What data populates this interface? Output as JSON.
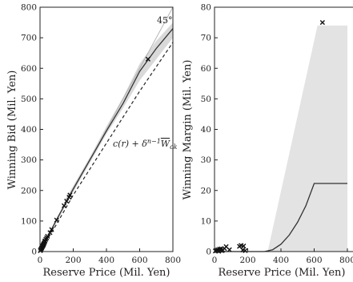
{
  "chart_data": [
    {
      "type": "line",
      "xlabel": "Reserve Price (Mil. Yen)",
      "ylabel": "Winning Bid (Mil. Yen)",
      "xlim": [
        0,
        800
      ],
      "ylim": [
        0,
        800
      ],
      "xticks": [
        "0",
        "200",
        "400",
        "600",
        "800"
      ],
      "yticks": [
        "0",
        "100",
        "200",
        "300",
        "400",
        "500",
        "600",
        "700",
        "800"
      ],
      "grid": false,
      "annotations": [
        "45°",
        "c(r) + δⁿ⁻¹W̄ck"
      ],
      "series": [
        {
          "style": "diagonal-45",
          "x": [
            0,
            800
          ],
          "y": [
            0,
            800
          ]
        },
        {
          "style": "solid",
          "x": [
            0,
            100,
            200,
            300,
            400,
            500,
            600,
            700,
            800
          ],
          "y": [
            0,
            105,
            205,
            300,
            395,
            485,
            590,
            665,
            730
          ]
        },
        {
          "style": "dashed",
          "x": [
            0,
            100,
            200,
            300,
            400,
            500,
            600,
            700,
            800
          ],
          "y": [
            0,
            90,
            185,
            270,
            355,
            440,
            525,
            605,
            685
          ]
        },
        {
          "style": "band-upper",
          "x": [
            150,
            200,
            300,
            400,
            500,
            600,
            700,
            800
          ],
          "y": [
            170,
            215,
            310,
            410,
            505,
            615,
            690,
            750
          ]
        },
        {
          "style": "band-lower",
          "x": [
            150,
            200,
            300,
            400,
            500,
            600,
            700,
            800
          ],
          "y": [
            150,
            195,
            290,
            385,
            470,
            560,
            630,
            700
          ]
        },
        {
          "style": "markers-x",
          "x": [
            2,
            4,
            6,
            8,
            10,
            12,
            15,
            18,
            20,
            22,
            25,
            28,
            30,
            35,
            40,
            45,
            60,
            70,
            100,
            145,
            160,
            175,
            180,
            650
          ],
          "y": [
            3,
            5,
            8,
            10,
            12,
            14,
            17,
            20,
            22,
            25,
            28,
            32,
            35,
            40,
            45,
            50,
            62,
            72,
            103,
            150,
            165,
            178,
            185,
            630
          ]
        }
      ]
    },
    {
      "type": "line",
      "xlabel": "Reserve Price (Mil. Yen)",
      "ylabel": "Winning Margin (Mil. Yen)",
      "xlim": [
        0,
        800
      ],
      "ylim": [
        0,
        80
      ],
      "xticks": [
        "0",
        "200",
        "400",
        "600",
        "800"
      ],
      "yticks": [
        "0",
        "10",
        "20",
        "30",
        "40",
        "50",
        "60",
        "70",
        "80"
      ],
      "grid": false,
      "series": [
        {
          "style": "solid",
          "x": [
            0,
            300,
            350,
            400,
            450,
            500,
            550,
            600,
            800
          ],
          "y": [
            0,
            0,
            0.6,
            2.4,
            5.4,
            9.6,
            15,
            22.3,
            22.3
          ]
        },
        {
          "style": "band",
          "x": [
            0,
            320,
            620,
            800
          ],
          "y": [
            0,
            0,
            74,
            74
          ]
        },
        {
          "style": "markers-x",
          "x": [
            5,
            10,
            15,
            20,
            25,
            30,
            35,
            40,
            45,
            50,
            60,
            70,
            90,
            150,
            160,
            170,
            175,
            185,
            650
          ],
          "y": [
            0.2,
            0.4,
            0.3,
            0.6,
            0.1,
            0.8,
            0.4,
            0.9,
            0.3,
            0.5,
            1.0,
            1.6,
            0.6,
            1.7,
            2.0,
            0.5,
            1.8,
            0.3,
            75
          ]
        }
      ]
    }
  ]
}
